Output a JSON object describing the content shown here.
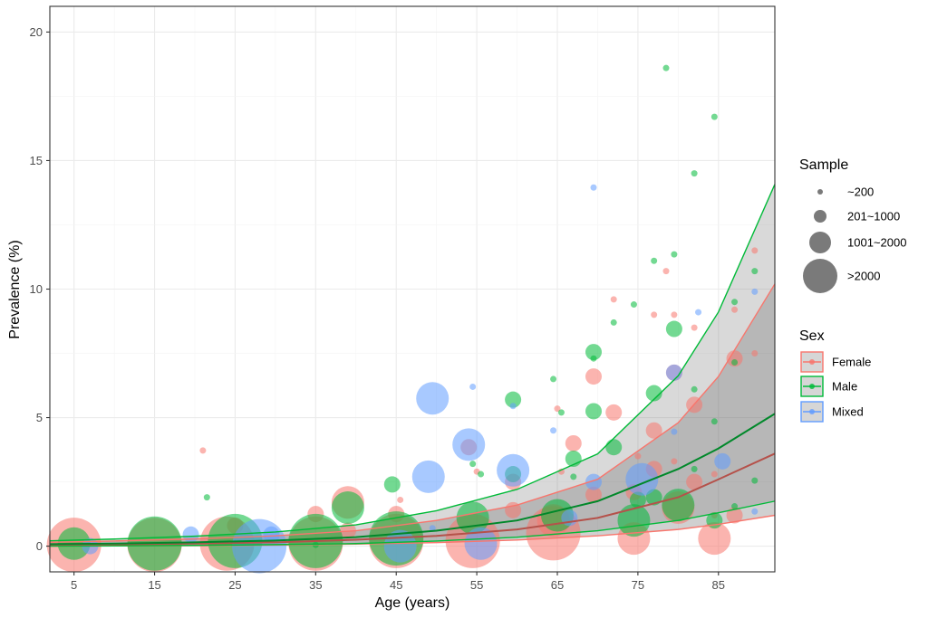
{
  "chart_data": {
    "type": "scatter",
    "xlabel": "Age (years)",
    "ylabel": "Prevalence (%)",
    "xlim": [
      2,
      92
    ],
    "ylim": [
      -1,
      21
    ],
    "x_ticks": [
      5,
      15,
      25,
      35,
      45,
      55,
      65,
      75,
      85
    ],
    "y_ticks": [
      0,
      5,
      10,
      15,
      20
    ],
    "grid": true,
    "legend_placement": "right",
    "size_legend": {
      "title": "Sample",
      "entries": [
        {
          "label": "~200",
          "size_class": 1
        },
        {
          "label": "201~1000",
          "size_class": 2
        },
        {
          "label": "1001~2000",
          "size_class": 3
        },
        {
          "label": ">2000",
          "size_class": 4
        }
      ]
    },
    "color_legend": {
      "title": "Sex",
      "entries": [
        {
          "label": "Female",
          "color": "#F8766D"
        },
        {
          "label": "Male",
          "color": "#00BA38"
        },
        {
          "label": "Mixed",
          "color": "#619CFF"
        }
      ]
    },
    "series": [
      {
        "name": "Female",
        "color": "#F8766D",
        "fit": {
          "x": [
            2,
            10,
            20,
            30,
            40,
            50,
            60,
            70,
            80,
            85,
            92
          ],
          "y": [
            0.05,
            0.07,
            0.1,
            0.15,
            0.25,
            0.4,
            0.65,
            1.1,
            1.9,
            2.6,
            3.6
          ]
        },
        "band": {
          "x": [
            2,
            10,
            20,
            30,
            40,
            50,
            60,
            70,
            80,
            85,
            92
          ],
          "lower": [
            0.0,
            0.01,
            0.02,
            0.04,
            0.08,
            0.14,
            0.24,
            0.4,
            0.65,
            0.85,
            1.2
          ],
          "upper": [
            0.15,
            0.2,
            0.28,
            0.4,
            0.6,
            1.0,
            1.6,
            2.6,
            4.8,
            6.6,
            10.2
          ]
        },
        "points": [
          {
            "x": 5,
            "y": 0.05,
            "s": 4
          },
          {
            "x": 15,
            "y": 0.05,
            "s": 4
          },
          {
            "x": 21,
            "y": 3.72,
            "s": 1
          },
          {
            "x": 24,
            "y": 0.1,
            "s": 4
          },
          {
            "x": 25,
            "y": 0.8,
            "s": 2
          },
          {
            "x": 35,
            "y": 0.1,
            "s": 4
          },
          {
            "x": 35,
            "y": 1.25,
            "s": 2
          },
          {
            "x": 39,
            "y": 1.7,
            "s": 3
          },
          {
            "x": 39,
            "y": 0.6,
            "s": 2
          },
          {
            "x": 45,
            "y": 0.2,
            "s": 4
          },
          {
            "x": 45,
            "y": 1.25,
            "s": 2
          },
          {
            "x": 45.5,
            "y": 1.8,
            "s": 1
          },
          {
            "x": 54.5,
            "y": 0.2,
            "s": 4
          },
          {
            "x": 54,
            "y": 3.85,
            "s": 2
          },
          {
            "x": 55,
            "y": 2.9,
            "s": 1
          },
          {
            "x": 59.5,
            "y": 1.4,
            "s": 2
          },
          {
            "x": 59.5,
            "y": 2.5,
            "s": 2
          },
          {
            "x": 64.5,
            "y": 0.5,
            "s": 4
          },
          {
            "x": 64.5,
            "y": 1.0,
            "s": 3
          },
          {
            "x": 65,
            "y": 5.35,
            "s": 1
          },
          {
            "x": 65.5,
            "y": 2.9,
            "s": 1
          },
          {
            "x": 67,
            "y": 4.0,
            "s": 2
          },
          {
            "x": 69.5,
            "y": 6.6,
            "s": 2
          },
          {
            "x": 69.5,
            "y": 2.0,
            "s": 2
          },
          {
            "x": 72,
            "y": 5.2,
            "s": 2
          },
          {
            "x": 72,
            "y": 9.6,
            "s": 1
          },
          {
            "x": 74.5,
            "y": 0.3,
            "s": 3
          },
          {
            "x": 74.5,
            "y": 2.1,
            "s": 2
          },
          {
            "x": 75,
            "y": 3.5,
            "s": 1
          },
          {
            "x": 77,
            "y": 4.5,
            "s": 2
          },
          {
            "x": 77,
            "y": 9.0,
            "s": 1
          },
          {
            "x": 77,
            "y": 3.0,
            "s": 2
          },
          {
            "x": 78.5,
            "y": 10.7,
            "s": 1
          },
          {
            "x": 79.5,
            "y": 9.0,
            "s": 1
          },
          {
            "x": 79.5,
            "y": 6.75,
            "s": 2
          },
          {
            "x": 79.5,
            "y": 3.3,
            "s": 1
          },
          {
            "x": 80,
            "y": 1.5,
            "s": 3
          },
          {
            "x": 82,
            "y": 8.5,
            "s": 1
          },
          {
            "x": 82,
            "y": 5.5,
            "s": 2
          },
          {
            "x": 82,
            "y": 2.5,
            "s": 2
          },
          {
            "x": 84.5,
            "y": 0.3,
            "s": 3
          },
          {
            "x": 84.5,
            "y": 1.2,
            "s": 1
          },
          {
            "x": 84.5,
            "y": 2.8,
            "s": 1
          },
          {
            "x": 87,
            "y": 9.2,
            "s": 1
          },
          {
            "x": 87,
            "y": 7.3,
            "s": 2
          },
          {
            "x": 87,
            "y": 1.2,
            "s": 2
          },
          {
            "x": 89.5,
            "y": 11.5,
            "s": 1
          },
          {
            "x": 89.5,
            "y": 7.5,
            "s": 1
          }
        ]
      },
      {
        "name": "Male",
        "color": "#00BA38",
        "fit": {
          "x": [
            2,
            10,
            20,
            30,
            40,
            50,
            60,
            70,
            80,
            85,
            92
          ],
          "y": [
            0.08,
            0.1,
            0.15,
            0.22,
            0.35,
            0.6,
            1.0,
            1.75,
            3.0,
            3.8,
            5.15
          ]
        },
        "band": {
          "x": [
            2,
            10,
            20,
            30,
            40,
            50,
            60,
            70,
            80,
            85,
            92
          ],
          "lower": [
            0.0,
            0.01,
            0.03,
            0.06,
            0.1,
            0.2,
            0.35,
            0.6,
            1.0,
            1.3,
            1.75
          ]
        },
        "points": [
          {
            "x": 5,
            "y": 0.1,
            "s": 3
          },
          {
            "x": 15,
            "y": 0.1,
            "s": 4
          },
          {
            "x": 21.5,
            "y": 1.9,
            "s": 1
          },
          {
            "x": 25,
            "y": 0.2,
            "s": 4
          },
          {
            "x": 35,
            "y": 0.2,
            "s": 4
          },
          {
            "x": 35,
            "y": 0.05,
            "s": 1
          },
          {
            "x": 39,
            "y": 1.5,
            "s": 3
          },
          {
            "x": 44.5,
            "y": 2.4,
            "s": 2
          },
          {
            "x": 45,
            "y": 0.3,
            "s": 4
          },
          {
            "x": 54.5,
            "y": 1.1,
            "s": 3
          },
          {
            "x": 54.5,
            "y": 3.2,
            "s": 1
          },
          {
            "x": 55.5,
            "y": 2.8,
            "s": 1
          },
          {
            "x": 59.5,
            "y": 5.7,
            "s": 2
          },
          {
            "x": 59.5,
            "y": 2.8,
            "s": 2
          },
          {
            "x": 64.5,
            "y": 6.5,
            "s": 1
          },
          {
            "x": 65,
            "y": 1.2,
            "s": 3
          },
          {
            "x": 65.5,
            "y": 5.2,
            "s": 1
          },
          {
            "x": 67,
            "y": 3.4,
            "s": 2
          },
          {
            "x": 67,
            "y": 2.7,
            "s": 1
          },
          {
            "x": 69.5,
            "y": 7.55,
            "s": 2
          },
          {
            "x": 69.5,
            "y": 5.25,
            "s": 2
          },
          {
            "x": 69.5,
            "y": 7.3,
            "s": 1
          },
          {
            "x": 72,
            "y": 3.85,
            "s": 2
          },
          {
            "x": 72,
            "y": 8.7,
            "s": 1
          },
          {
            "x": 74.5,
            "y": 9.4,
            "s": 1
          },
          {
            "x": 74.5,
            "y": 1.0,
            "s": 3
          },
          {
            "x": 75,
            "y": 1.8,
            "s": 2
          },
          {
            "x": 77,
            "y": 5.95,
            "s": 2
          },
          {
            "x": 77,
            "y": 11.1,
            "s": 1
          },
          {
            "x": 77,
            "y": 1.9,
            "s": 2
          },
          {
            "x": 78.5,
            "y": 18.6,
            "s": 1
          },
          {
            "x": 79.5,
            "y": 11.35,
            "s": 1
          },
          {
            "x": 79.5,
            "y": 8.45,
            "s": 2
          },
          {
            "x": 80,
            "y": 1.6,
            "s": 3
          },
          {
            "x": 82,
            "y": 14.5,
            "s": 1
          },
          {
            "x": 82,
            "y": 6.1,
            "s": 1
          },
          {
            "x": 82,
            "y": 3.0,
            "s": 1
          },
          {
            "x": 84.5,
            "y": 16.7,
            "s": 1
          },
          {
            "x": 84.5,
            "y": 4.85,
            "s": 1
          },
          {
            "x": 84.5,
            "y": 1.0,
            "s": 2
          },
          {
            "x": 87,
            "y": 9.5,
            "s": 1
          },
          {
            "x": 87,
            "y": 7.15,
            "s": 1
          },
          {
            "x": 87,
            "y": 1.55,
            "s": 1
          },
          {
            "x": 89.5,
            "y": 10.7,
            "s": 1
          },
          {
            "x": 89.5,
            "y": 2.55,
            "s": 1
          }
        ]
      },
      {
        "name": "Mixed",
        "color": "#619CFF",
        "fit": {
          "x": [],
          "y": []
        },
        "band": {
          "x": [],
          "lower": []
        },
        "points": [
          {
            "x": 7,
            "y": 0.0,
            "s": 2
          },
          {
            "x": 19.5,
            "y": 0.45,
            "s": 2
          },
          {
            "x": 28,
            "y": 0.0,
            "s": 4
          },
          {
            "x": 29.5,
            "y": 0.45,
            "s": 2
          },
          {
            "x": 45.5,
            "y": 0.0,
            "s": 3
          },
          {
            "x": 49.5,
            "y": 0.7,
            "s": 1
          },
          {
            "x": 49.5,
            "y": 5.75,
            "s": 3
          },
          {
            "x": 49,
            "y": 2.7,
            "s": 3
          },
          {
            "x": 54,
            "y": 3.95,
            "s": 3
          },
          {
            "x": 54.5,
            "y": 6.2,
            "s": 1
          },
          {
            "x": 55.5,
            "y": 0.1,
            "s": 3
          },
          {
            "x": 59.5,
            "y": 2.95,
            "s": 3
          },
          {
            "x": 59.5,
            "y": 5.45,
            "s": 1
          },
          {
            "x": 64.5,
            "y": 4.5,
            "s": 1
          },
          {
            "x": 66.5,
            "y": 1.1,
            "s": 2
          },
          {
            "x": 69.5,
            "y": 13.95,
            "s": 1
          },
          {
            "x": 69.5,
            "y": 2.5,
            "s": 2
          },
          {
            "x": 75.5,
            "y": 2.6,
            "s": 3
          },
          {
            "x": 79.5,
            "y": 6.75,
            "s": 2
          },
          {
            "x": 79.5,
            "y": 4.45,
            "s": 1
          },
          {
            "x": 82.5,
            "y": 9.1,
            "s": 1
          },
          {
            "x": 85.5,
            "y": 3.3,
            "s": 2
          },
          {
            "x": 89.5,
            "y": 9.9,
            "s": 1
          },
          {
            "x": 89.5,
            "y": 1.35,
            "s": 1
          }
        ]
      }
    ]
  }
}
